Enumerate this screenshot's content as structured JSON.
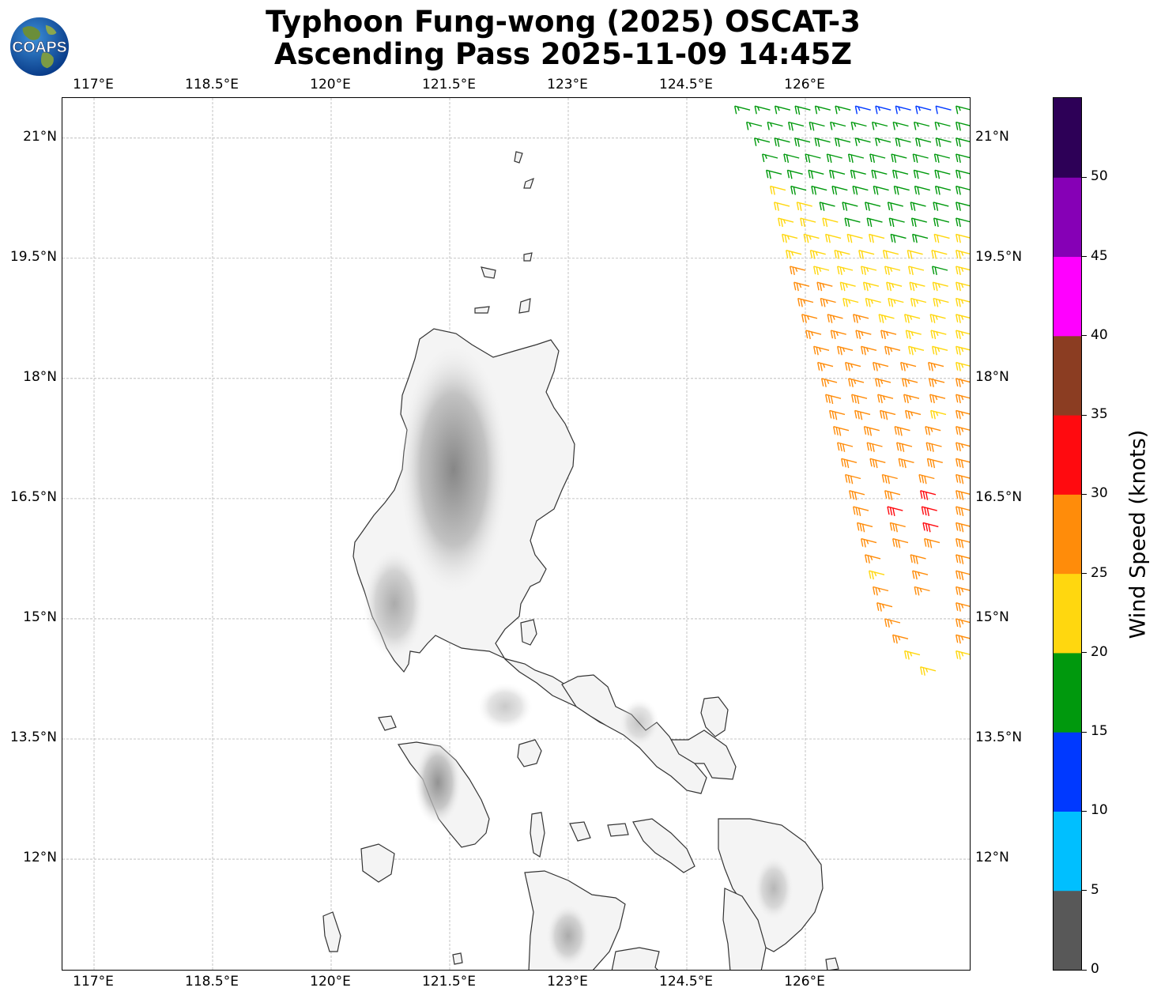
{
  "title": {
    "line1": "Typhoon Fung-wong (2025) OSCAT-3",
    "line2": "Ascending Pass 2025-11-09 14:45Z"
  },
  "logo": {
    "text": "COAPS",
    "icon": "globe-icon"
  },
  "map": {
    "lon_range": [
      116.6,
      128.1
    ],
    "lat_range": [
      10.6,
      21.5
    ],
    "lon_ticks": [
      "117°E",
      "118.5°E",
      "120°E",
      "121.5°E",
      "123°E",
      "124.5°E",
      "126°E"
    ],
    "lon_values": [
      117,
      118.5,
      120,
      121.5,
      123,
      124.5,
      126
    ],
    "lat_ticks": [
      "21°N",
      "19.5°N",
      "18°N",
      "16.5°N",
      "15°N",
      "13.5°N",
      "12°N"
    ],
    "lat_values": [
      21,
      19.5,
      18,
      16.5,
      15,
      13.5,
      12
    ],
    "gridlines": true,
    "land_color": "#f2f2f2",
    "coast_color": "#333333"
  },
  "colorbar": {
    "title": "Wind Speed (knots)",
    "tick_labels": [
      "0",
      "5",
      "10",
      "15",
      "20",
      "25",
      "30",
      "35",
      "40",
      "45",
      "50"
    ],
    "tick_values": [
      0,
      5,
      10,
      15,
      20,
      25,
      30,
      35,
      40,
      45,
      50
    ],
    "max": 55,
    "colors": [
      "#585858",
      "#00bfff",
      "#0039ff",
      "#00990d",
      "#ffd70f",
      "#ff8c0a",
      "#ff0a0f",
      "#8b3d22",
      "#ff00ff",
      "#8600b6",
      "#2d0057"
    ]
  },
  "wind_barbs": {
    "units": "knots",
    "rows": [
      {
        "lat": 21.35,
        "lon_start": 125.3,
        "lon_end": 128.1,
        "speeds": [
          17,
          16,
          17,
          18,
          17,
          16,
          14,
          14,
          13,
          13,
          12,
          16
        ]
      },
      {
        "lat": 21.15,
        "lon_start": 125.45,
        "lon_end": 128.1,
        "speeds": [
          17,
          17,
          18,
          18,
          17,
          17,
          17,
          16,
          16,
          17,
          18
        ]
      },
      {
        "lat": 20.95,
        "lon_start": 125.55,
        "lon_end": 128.1,
        "speeds": [
          17,
          18,
          18,
          18,
          18,
          17,
          17,
          18,
          18,
          19,
          18
        ]
      },
      {
        "lat": 20.75,
        "lon_start": 125.65,
        "lon_end": 128.1,
        "speeds": [
          17,
          18,
          18,
          19,
          19,
          18,
          18,
          19,
          19,
          19
        ]
      },
      {
        "lat": 20.55,
        "lon_start": 125.7,
        "lon_end": 128.1,
        "speeds": [
          18,
          19,
          19,
          19,
          19,
          19,
          19,
          19,
          19,
          19
        ]
      },
      {
        "lat": 20.35,
        "lon_start": 125.75,
        "lon_end": 128.1,
        "speeds": [
          21,
          19,
          19,
          19,
          19,
          19,
          19,
          19,
          19,
          18
        ]
      },
      {
        "lat": 20.15,
        "lon_start": 125.8,
        "lon_end": 128.1,
        "speeds": [
          22,
          21,
          19,
          19,
          19,
          19,
          19,
          19,
          19
        ]
      },
      {
        "lat": 19.95,
        "lon_start": 125.85,
        "lon_end": 128.1,
        "speeds": [
          23,
          22,
          21,
          19,
          19,
          19,
          19,
          19,
          19
        ]
      },
      {
        "lat": 19.75,
        "lon_start": 125.9,
        "lon_end": 128.1,
        "speeds": [
          24,
          23,
          22,
          21,
          21,
          19,
          19,
          21,
          22
        ]
      },
      {
        "lat": 19.55,
        "lon_start": 125.95,
        "lon_end": 128.1,
        "speeds": [
          24,
          24,
          23,
          22,
          22,
          21,
          21,
          23
        ]
      },
      {
        "lat": 19.35,
        "lon_start": 126.0,
        "lon_end": 128.1,
        "speeds": [
          26,
          24,
          24,
          23,
          23,
          22,
          19,
          24
        ]
      },
      {
        "lat": 19.15,
        "lon_start": 126.05,
        "lon_end": 128.1,
        "speeds": [
          26,
          25,
          24,
          24,
          23,
          23,
          24,
          23
        ]
      },
      {
        "lat": 18.95,
        "lon_start": 126.1,
        "lon_end": 128.1,
        "speeds": [
          27,
          26,
          24,
          24,
          24,
          23,
          23,
          24
        ]
      },
      {
        "lat": 18.75,
        "lon_start": 126.15,
        "lon_end": 128.1,
        "speeds": [
          27,
          27,
          26,
          24,
          24,
          24,
          24
        ]
      },
      {
        "lat": 18.55,
        "lon_start": 126.2,
        "lon_end": 128.1,
        "speeds": [
          27,
          27,
          26,
          25,
          24,
          24,
          24
        ]
      },
      {
        "lat": 18.35,
        "lon_start": 126.3,
        "lon_end": 128.1,
        "speeds": [
          27,
          27,
          27,
          26,
          24,
          24,
          23
        ]
      },
      {
        "lat": 18.15,
        "lon_start": 126.35,
        "lon_end": 128.1,
        "speeds": [
          27,
          27,
          27,
          27,
          26,
          24
        ]
      },
      {
        "lat": 17.95,
        "lon_start": 126.4,
        "lon_end": 128.1,
        "speeds": [
          27,
          27,
          27,
          27,
          26,
          25
        ]
      },
      {
        "lat": 17.75,
        "lon_start": 126.45,
        "lon_end": 128.1,
        "speeds": [
          28,
          28,
          27,
          27,
          27,
          26
        ]
      },
      {
        "lat": 17.55,
        "lon_start": 126.5,
        "lon_end": 128.1,
        "speeds": [
          28,
          28,
          28,
          27,
          24,
          27
        ]
      },
      {
        "lat": 17.35,
        "lon_start": 126.55,
        "lon_end": 128.1,
        "speeds": [
          28,
          28,
          28,
          27,
          27
        ]
      },
      {
        "lat": 17.15,
        "lon_start": 126.6,
        "lon_end": 128.1,
        "speeds": [
          28,
          29,
          28,
          28,
          27
        ]
      },
      {
        "lat": 16.95,
        "lon_start": 126.65,
        "lon_end": 128.1,
        "speeds": [
          29,
          29,
          29,
          28,
          28
        ]
      },
      {
        "lat": 16.75,
        "lon_start": 126.7,
        "lon_end": 128.1,
        "speeds": [
          29,
          29,
          29,
          29
        ]
      },
      {
        "lat": 16.55,
        "lon_start": 126.75,
        "lon_end": 128.1,
        "speeds": [
          28,
          29,
          31,
          29
        ]
      },
      {
        "lat": 16.35,
        "lon_start": 126.8,
        "lon_end": 128.1,
        "speeds": [
          28,
          31,
          32,
          29
        ]
      },
      {
        "lat": 16.15,
        "lon_start": 126.85,
        "lon_end": 128.1,
        "speeds": [
          28,
          29,
          32,
          29
        ]
      },
      {
        "lat": 15.95,
        "lon_start": 126.9,
        "lon_end": 128.1,
        "speeds": [
          27,
          28,
          29,
          28
        ]
      },
      {
        "lat": 15.75,
        "lon_start": 126.95,
        "lon_end": 128.1,
        "speeds": [
          26,
          28,
          28
        ]
      },
      {
        "lat": 15.55,
        "lon_start": 127.0,
        "lon_end": 128.1,
        "speeds": [
          24,
          27,
          28
        ]
      },
      {
        "lat": 15.35,
        "lon_start": 127.05,
        "lon_end": 128.1,
        "speeds": [
          27,
          27,
          26
        ]
      },
      {
        "lat": 15.15,
        "lon_start": 127.1,
        "lon_end": 128.1,
        "speeds": [
          27,
          27
        ]
      },
      {
        "lat": 14.95,
        "lon_start": 127.2,
        "lon_end": 128.1,
        "speeds": [
          27,
          26
        ]
      },
      {
        "lat": 14.75,
        "lon_start": 127.3,
        "lon_end": 128.1,
        "speeds": [
          27,
          26
        ]
      },
      {
        "lat": 14.55,
        "lon_start": 127.45,
        "lon_end": 128.1,
        "speeds": [
          24,
          23
        ]
      },
      {
        "lat": 14.35,
        "lon_start": 127.65,
        "lon_end": 128.1,
        "speeds": [
          23
        ]
      }
    ]
  }
}
